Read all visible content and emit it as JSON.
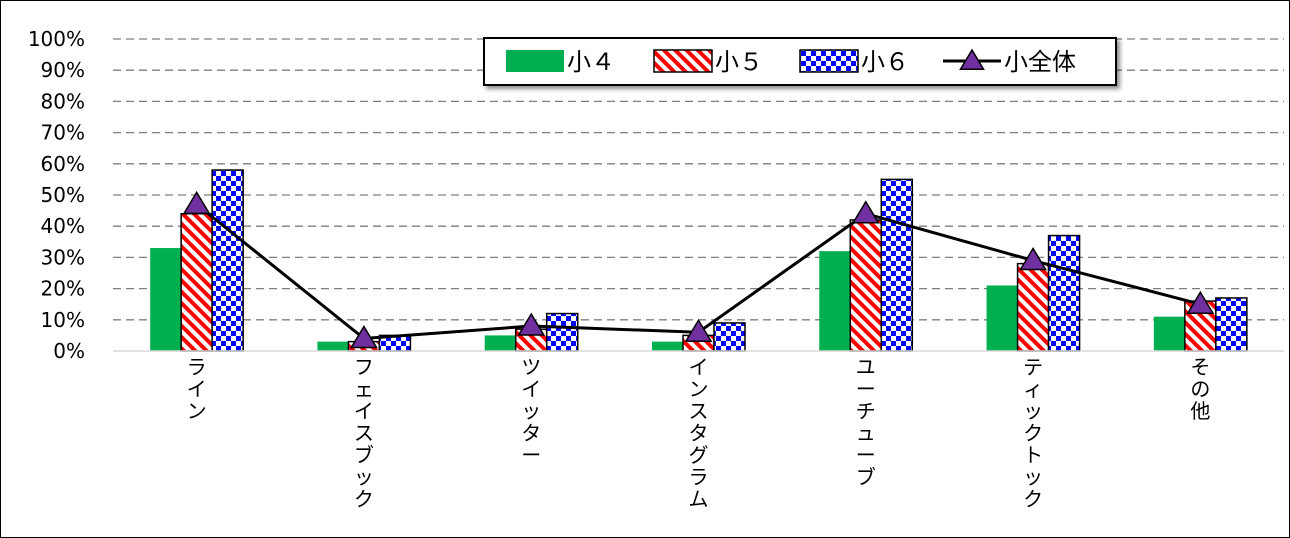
{
  "chart_data": {
    "type": "bar",
    "categories": [
      "ライン",
      "フェイスブック",
      "ツイッター",
      "インスタグラム",
      "ユーチューブ",
      "ティックトック",
      "その他"
    ],
    "series": [
      {
        "name": "小４",
        "type": "bar",
        "values": [
          33,
          3,
          5,
          3,
          32,
          21,
          11
        ],
        "color": "#00b050",
        "pattern": "solid"
      },
      {
        "name": "小５",
        "type": "bar",
        "values": [
          44,
          3,
          7,
          5,
          42,
          28,
          16
        ],
        "color": "#ff0000",
        "pattern": "diagonal-stripes"
      },
      {
        "name": "小６",
        "type": "bar",
        "values": [
          58,
          5,
          12,
          9,
          55,
          37,
          17
        ],
        "color": "#0000ff",
        "pattern": "checkerboard"
      },
      {
        "name": "小全体",
        "type": "line",
        "values": [
          47,
          4,
          8,
          6,
          44,
          29,
          15
        ],
        "color": "#7030a0",
        "marker": "triangle"
      }
    ],
    "y_ticks": [
      "0%",
      "10%",
      "20%",
      "30%",
      "40%",
      "50%",
      "60%",
      "70%",
      "80%",
      "90%",
      "100%"
    ],
    "ylim": [
      0,
      100
    ],
    "grid": true,
    "legend_position": "top-center"
  }
}
